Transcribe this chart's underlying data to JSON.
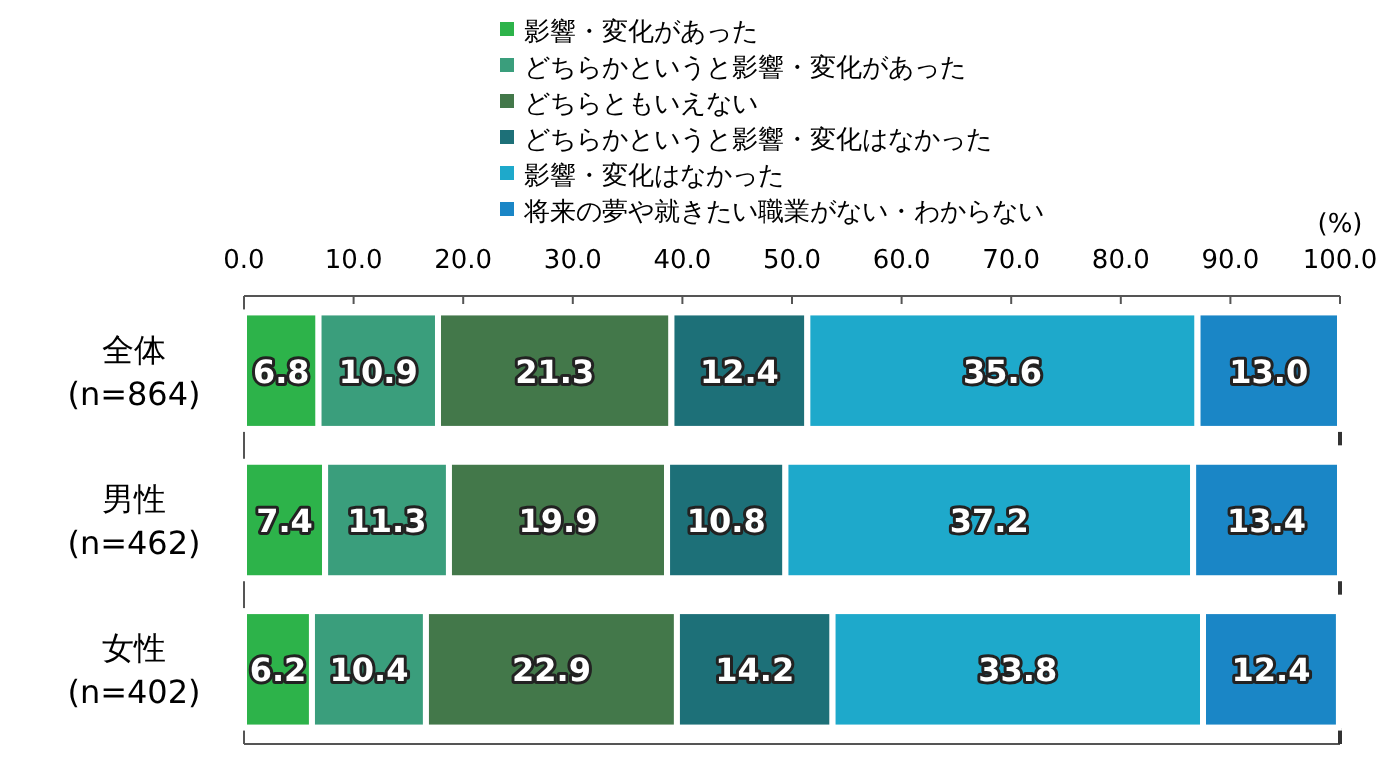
{
  "chart_data": {
    "type": "bar",
    "orientation": "horizontal",
    "stacked": true,
    "legend": "top",
    "grid": false,
    "xlabel": "(%)",
    "categories": [
      "全体\n(n=864)",
      "男性\n(n=462)",
      "女性\n(n=402)"
    ],
    "series": [
      {
        "name": "影響・変化があった",
        "color": "#2db34a",
        "values": [
          6.8,
          7.4,
          6.2
        ],
        "value_labels": [
          "6.8",
          "7.4",
          "6.2"
        ]
      },
      {
        "name": "どちらかというと影響・変化があった",
        "color": "#3a9e7c",
        "values": [
          10.9,
          11.3,
          10.4
        ],
        "value_labels": [
          "10.9",
          "11.3",
          "10.4"
        ]
      },
      {
        "name": "どちらともいえない",
        "color": "#43784a",
        "values": [
          21.3,
          19.9,
          22.9
        ],
        "value_labels": [
          "21.3",
          "19.9",
          "22.9"
        ]
      },
      {
        "name": "どちらかというと影響・変化はなかった",
        "color": "#1d7078",
        "values": [
          12.4,
          10.8,
          14.2
        ],
        "value_labels": [
          "12.4",
          "10.8",
          "14.2"
        ]
      },
      {
        "name": "影響・変化はなかった",
        "color": "#1ea9cb",
        "values": [
          35.6,
          37.2,
          33.8
        ],
        "value_labels": [
          "35.6",
          "37.2",
          "33.8"
        ]
      },
      {
        "name": "将来の夢や就きたい職業がない・わからない",
        "color": "#1a86c6",
        "values": [
          13.0,
          13.4,
          12.4
        ],
        "value_labels": [
          "13.0",
          "13.4",
          "12.4"
        ]
      }
    ],
    "xlim": [
      0,
      100
    ],
    "xticks": [
      {
        "value": 0,
        "label": "0.0"
      },
      {
        "value": 10,
        "label": "10.0"
      },
      {
        "value": 20,
        "label": "20.0"
      },
      {
        "value": 30,
        "label": "30.0"
      },
      {
        "value": 40,
        "label": "40.0"
      },
      {
        "value": 50,
        "label": "50.0"
      },
      {
        "value": 60,
        "label": "60.0"
      },
      {
        "value": 70,
        "label": "70.0"
      },
      {
        "value": 80,
        "label": "80.0"
      },
      {
        "value": 90,
        "label": "90.0"
      },
      {
        "value": 100,
        "label": "100.0"
      }
    ]
  }
}
